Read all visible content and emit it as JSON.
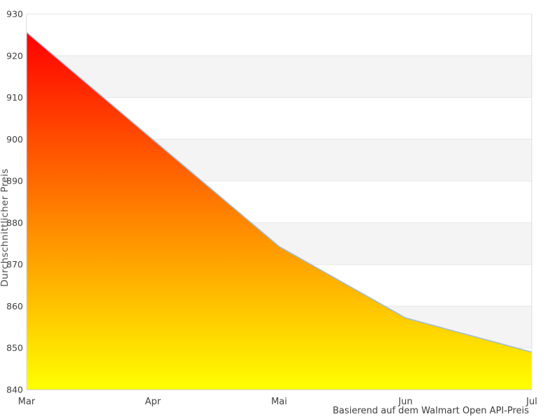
{
  "chart_data": {
    "type": "area",
    "categories": [
      "Mar",
      "Apr",
      "Mai",
      "Jun",
      "Jul"
    ],
    "values": [
      925.6,
      899.9,
      874.3,
      857.2,
      849.0
    ],
    "title": "",
    "xlabel": "",
    "ylabel": "Durchschnittlicher Preis",
    "ylim": [
      840,
      930
    ],
    "yticks": [
      930,
      920,
      910,
      900,
      890,
      880,
      870,
      860,
      850,
      840
    ],
    "grid": true,
    "legend_position": "none",
    "caption": "Basierend auf dem Walmart Open API-Preis",
    "colors": {
      "area_gradient_top": "#ff0000",
      "area_gradient_bottom": "#ffff00",
      "line": "#a4bdd6",
      "band": "#f4f4f4",
      "gridline": "#e6e6e6",
      "axis_border": "#dcdcdc",
      "x_axis_line": "#c9c9c9",
      "tick_text": "#404040",
      "axis_title_text": "#4f4f4f"
    }
  }
}
